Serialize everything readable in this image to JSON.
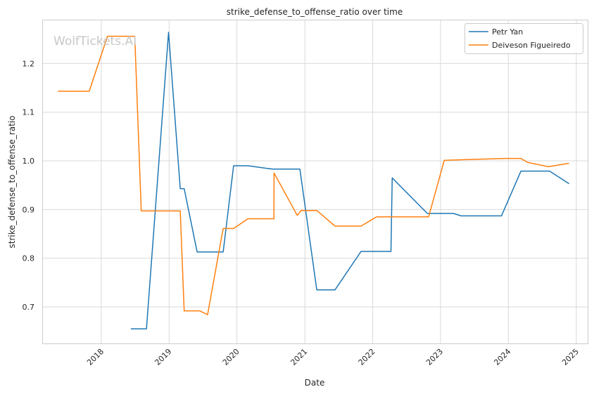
{
  "chart_data": {
    "type": "line",
    "title": "strike_defense_to_offense_ratio over time",
    "xlabel": "Date",
    "ylabel": "strike_defense_to_offense_ratio",
    "watermark": "WolfTickets.AI",
    "x_ticks": [
      "2018",
      "2019",
      "2020",
      "2021",
      "2022",
      "2023",
      "2024",
      "2025"
    ],
    "y_ticks": [
      "0.7",
      "0.8",
      "0.9",
      "1.0",
      "1.1",
      "1.2"
    ],
    "xlim": [
      "2017-02-17",
      "2025-03-03"
    ],
    "ylim": [
      0.625,
      1.29
    ],
    "grid": true,
    "legend_position": "top-right",
    "series": [
      {
        "name": "Petr Yan",
        "color": "#1f77b4",
        "points": [
          [
            "2018-06-09",
            0.655
          ],
          [
            "2018-09-01",
            0.655
          ],
          [
            "2018-12-29",
            1.264
          ],
          [
            "2019-03-02",
            0.943
          ],
          [
            "2019-03-23",
            0.943
          ],
          [
            "2019-06-01",
            0.813
          ],
          [
            "2019-10-19",
            0.813
          ],
          [
            "2019-12-14",
            0.99
          ],
          [
            "2020-02-29",
            0.99
          ],
          [
            "2020-07-11",
            0.983
          ],
          [
            "2020-12-05",
            0.983
          ],
          [
            "2021-03-06",
            0.735
          ],
          [
            "2021-06-12",
            0.735
          ],
          [
            "2021-10-30",
            0.814
          ],
          [
            "2022-04-09",
            0.814
          ],
          [
            "2022-04-16",
            0.965
          ],
          [
            "2022-10-22",
            0.892
          ],
          [
            "2023-03-11",
            0.892
          ],
          [
            "2023-04-22",
            0.887
          ],
          [
            "2023-11-25",
            0.887
          ],
          [
            "2024-03-09",
            0.979
          ],
          [
            "2024-08-10",
            0.979
          ],
          [
            "2024-11-23",
            0.953
          ]
        ]
      },
      {
        "name": "Deiveson Figueiredo",
        "color": "#ff7f0e",
        "points": [
          [
            "2017-05-13",
            1.143
          ],
          [
            "2017-10-28",
            1.143
          ],
          [
            "2018-02-03",
            1.256
          ],
          [
            "2018-06-30",
            1.256
          ],
          [
            "2018-08-04",
            0.897
          ],
          [
            "2019-03-02",
            0.897
          ],
          [
            "2019-03-23",
            0.692
          ],
          [
            "2019-06-15",
            0.692
          ],
          [
            "2019-07-27",
            0.684
          ],
          [
            "2019-10-19",
            0.861
          ],
          [
            "2019-12-14",
            0.861
          ],
          [
            "2020-02-29",
            0.881
          ],
          [
            "2020-07-18",
            0.881
          ],
          [
            "2020-07-19",
            0.975
          ],
          [
            "2020-11-21",
            0.888
          ],
          [
            "2020-12-12",
            0.898
          ],
          [
            "2021-03-06",
            0.898
          ],
          [
            "2021-06-12",
            0.866
          ],
          [
            "2021-10-30",
            0.866
          ],
          [
            "2022-01-22",
            0.885
          ],
          [
            "2022-10-29",
            0.885
          ],
          [
            "2023-01-21",
            1.001
          ],
          [
            "2023-12-09",
            1.005
          ],
          [
            "2024-03-09",
            1.005
          ],
          [
            "2024-04-13",
            0.997
          ],
          [
            "2024-08-03",
            0.988
          ],
          [
            "2024-11-23",
            0.995
          ]
        ]
      }
    ]
  }
}
